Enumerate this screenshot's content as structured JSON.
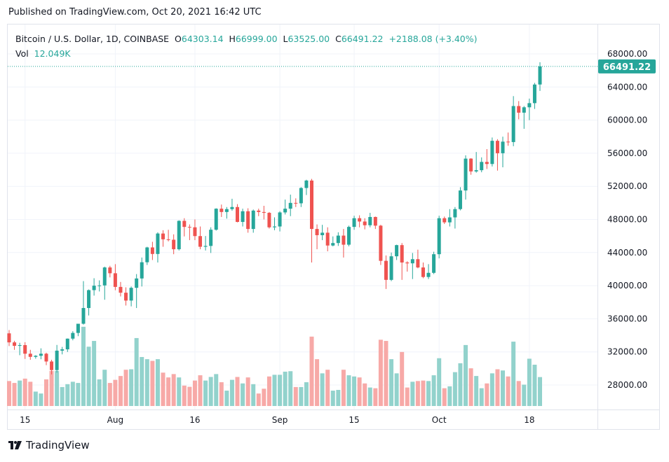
{
  "header": {
    "published": "Published on TradingView.com, Oct 20, 2021 16:42 UTC"
  },
  "legend": {
    "symbol": "Bitcoin / U.S. Dollar, 1D, COINBASE",
    "o_label": "O",
    "o": "64303.14",
    "h_label": "H",
    "h": "66999.00",
    "l_label": "L",
    "l": "63525.00",
    "c_label": "C",
    "c": "66491.22",
    "change": "+2188.08 (+3.40%)",
    "vol_label": "Vol",
    "vol": "12.049K"
  },
  "footer": {
    "brand": "TradingView"
  },
  "colors": {
    "up": "#26a69a",
    "down": "#ef5350",
    "up_volume": "#92d2cc",
    "down_volume": "#f7a9a7"
  },
  "chart_data": {
    "type": "candlestick",
    "title": "Bitcoin / U.S. Dollar, 1D, COINBASE",
    "price_axis_ticks": [
      "68000.00",
      "64000.00",
      "60000.00",
      "56000.00",
      "52000.00",
      "48000.00",
      "44000.00",
      "40000.00",
      "36000.00",
      "32000.00",
      "28000.00"
    ],
    "time_axis_ticks": [
      {
        "label": "15",
        "date": "2021-07-15"
      },
      {
        "label": "Aug",
        "date": "2021-08-01"
      },
      {
        "label": "16",
        "date": "2021-08-16"
      },
      {
        "label": "Sep",
        "date": "2021-09-01"
      },
      {
        "label": "15",
        "date": "2021-09-15"
      },
      {
        "label": "Oct",
        "date": "2021-10-01"
      },
      {
        "label": "18",
        "date": "2021-10-18"
      }
    ],
    "last_price_label": "66491.22",
    "ylim": [
      26000,
      70000
    ],
    "volume_unit": "K",
    "columns": [
      "date",
      "open",
      "high",
      "low",
      "close",
      "volume"
    ],
    "candles": [
      [
        "2021-07-12",
        34240,
        34640,
        32700,
        33150,
        10.4
      ],
      [
        "2021-07-13",
        33150,
        33340,
        32250,
        32730,
        9.6
      ],
      [
        "2021-07-14",
        32730,
        33100,
        31600,
        32820,
        10.6
      ],
      [
        "2021-07-15",
        32820,
        33170,
        31150,
        31780,
        11.4
      ],
      [
        "2021-07-16",
        31780,
        32250,
        31050,
        31400,
        10.1
      ],
      [
        "2021-07-17",
        31400,
        31600,
        31180,
        31530,
        6.0
      ],
      [
        "2021-07-18",
        31530,
        32430,
        31110,
        31780,
        5.2
      ],
      [
        "2021-07-19",
        31780,
        31900,
        30400,
        30840,
        11.1
      ],
      [
        "2021-07-20",
        30840,
        31050,
        29280,
        29800,
        14.6
      ],
      [
        "2021-07-21",
        29800,
        32840,
        29500,
        32150,
        14.6
      ],
      [
        "2021-07-22",
        32150,
        32600,
        31700,
        32310,
        7.9
      ],
      [
        "2021-07-23",
        32310,
        33620,
        31990,
        33600,
        9.1
      ],
      [
        "2021-07-24",
        33600,
        34500,
        33400,
        34290,
        10.1
      ],
      [
        "2021-07-25",
        34290,
        35400,
        33900,
        35400,
        9.6
      ],
      [
        "2021-07-26",
        35400,
        40550,
        35300,
        37300,
        33.0
      ],
      [
        "2021-07-27",
        37300,
        39540,
        36400,
        39460,
        24.7
      ],
      [
        "2021-07-28",
        39460,
        40900,
        38800,
        40000,
        27.1
      ],
      [
        "2021-07-29",
        40000,
        40640,
        39300,
        40030,
        11.1
      ],
      [
        "2021-07-30",
        40030,
        42300,
        38300,
        42200,
        15.1
      ],
      [
        "2021-07-31",
        42200,
        42400,
        41000,
        41500,
        9.6
      ],
      [
        "2021-08-01",
        41500,
        42600,
        39450,
        39850,
        10.9
      ],
      [
        "2021-08-02",
        39850,
        40450,
        38700,
        39150,
        12.5
      ],
      [
        "2021-08-03",
        39150,
        39800,
        37600,
        38200,
        15.1
      ],
      [
        "2021-08-04",
        38200,
        39900,
        37500,
        39740,
        15.3
      ],
      [
        "2021-08-05",
        39740,
        41400,
        37300,
        40870,
        28.3
      ],
      [
        "2021-08-06",
        40870,
        43400,
        39900,
        42830,
        20.4
      ],
      [
        "2021-08-07",
        42830,
        44700,
        42500,
        44620,
        19.5
      ],
      [
        "2021-08-08",
        44620,
        45300,
        43100,
        43830,
        18.8
      ],
      [
        "2021-08-09",
        43830,
        46450,
        42800,
        46300,
        19.5
      ],
      [
        "2021-08-10",
        46300,
        46700,
        44700,
        45600,
        13.9
      ],
      [
        "2021-08-11",
        45600,
        46750,
        45350,
        45550,
        11.9
      ],
      [
        "2021-08-12",
        45550,
        46200,
        43800,
        44400,
        13.3
      ],
      [
        "2021-08-13",
        44400,
        47900,
        44250,
        47830,
        11.9
      ],
      [
        "2021-08-14",
        47830,
        48150,
        45950,
        47100,
        8.5
      ],
      [
        "2021-08-15",
        47100,
        47400,
        45500,
        47050,
        8.0
      ],
      [
        "2021-08-16",
        47050,
        48000,
        45500,
        45990,
        10.6
      ],
      [
        "2021-08-17",
        45990,
        47150,
        44400,
        44700,
        12.8
      ],
      [
        "2021-08-18",
        44700,
        46000,
        44250,
        44800,
        10.6
      ],
      [
        "2021-08-19",
        44800,
        47050,
        43950,
        46760,
        12.1
      ],
      [
        "2021-08-20",
        46760,
        49350,
        46650,
        49300,
        13.3
      ],
      [
        "2021-08-21",
        49300,
        49800,
        48300,
        48900,
        9.9
      ],
      [
        "2021-08-22",
        48900,
        49500,
        48100,
        49250,
        6.4
      ],
      [
        "2021-08-23",
        49250,
        50500,
        49050,
        49500,
        10.9
      ],
      [
        "2021-08-24",
        49500,
        49850,
        47650,
        47700,
        12.1
      ],
      [
        "2021-08-25",
        47700,
        49300,
        47150,
        48990,
        9.4
      ],
      [
        "2021-08-26",
        48990,
        49350,
        46400,
        46850,
        11.9
      ],
      [
        "2021-08-27",
        46850,
        49200,
        46400,
        49070,
        9.1
      ],
      [
        "2021-08-28",
        49070,
        49300,
        48400,
        48900,
        5.2
      ],
      [
        "2021-08-29",
        48900,
        49650,
        48000,
        48800,
        7.2
      ],
      [
        "2021-08-30",
        48800,
        48900,
        46900,
        47050,
        12.3
      ],
      [
        "2021-08-31",
        47050,
        48250,
        46700,
        47150,
        13.0
      ],
      [
        "2021-09-01",
        47150,
        49000,
        46550,
        48850,
        13.0
      ],
      [
        "2021-09-02",
        48850,
        50400,
        48600,
        49300,
        14.3
      ],
      [
        "2021-09-03",
        49300,
        51000,
        48400,
        50000,
        14.5
      ],
      [
        "2021-09-04",
        50000,
        50550,
        49500,
        49950,
        7.9
      ],
      [
        "2021-09-05",
        49950,
        51900,
        49500,
        51800,
        7.9
      ],
      [
        "2021-09-06",
        51800,
        52800,
        50950,
        52700,
        9.9
      ],
      [
        "2021-09-07",
        52700,
        52900,
        42800,
        46850,
        28.9
      ],
      [
        "2021-09-08",
        46850,
        47400,
        44400,
        46100,
        19.5
      ],
      [
        "2021-09-09",
        46100,
        47350,
        45500,
        46400,
        13.6
      ],
      [
        "2021-09-10",
        46400,
        47050,
        44150,
        44850,
        15.1
      ],
      [
        "2021-09-11",
        44850,
        45950,
        44750,
        45150,
        6.4
      ],
      [
        "2021-09-12",
        45150,
        46450,
        44800,
        46050,
        6.7
      ],
      [
        "2021-09-13",
        46050,
        46850,
        43400,
        44950,
        15.1
      ],
      [
        "2021-09-14",
        44950,
        47250,
        44750,
        47100,
        12.8
      ],
      [
        "2021-09-15",
        47100,
        48450,
        46750,
        48150,
        12.3
      ],
      [
        "2021-09-16",
        48150,
        48500,
        47050,
        47750,
        11.9
      ],
      [
        "2021-09-17",
        47750,
        48150,
        46800,
        47300,
        9.4
      ],
      [
        "2021-09-18",
        47300,
        48800,
        47050,
        48300,
        7.7
      ],
      [
        "2021-09-19",
        48300,
        48350,
        46850,
        47250,
        7.4
      ],
      [
        "2021-09-20",
        47250,
        47350,
        42500,
        43000,
        27.6
      ],
      [
        "2021-09-21",
        43000,
        43650,
        39600,
        40700,
        27.1
      ],
      [
        "2021-09-22",
        40700,
        44000,
        40550,
        43550,
        19.5
      ],
      [
        "2021-09-23",
        43550,
        44950,
        43100,
        44900,
        13.6
      ],
      [
        "2021-09-24",
        44900,
        45150,
        40700,
        42800,
        22.5
      ],
      [
        "2021-09-25",
        42800,
        42950,
        41700,
        42700,
        7.7
      ],
      [
        "2021-09-26",
        42700,
        43950,
        40800,
        43200,
        10.1
      ],
      [
        "2021-09-27",
        43200,
        44350,
        42100,
        42200,
        10.4
      ],
      [
        "2021-09-28",
        42200,
        42800,
        40900,
        41050,
        10.6
      ],
      [
        "2021-09-29",
        41050,
        42600,
        40800,
        41550,
        10.4
      ],
      [
        "2021-09-30",
        41550,
        44100,
        41400,
        43800,
        12.8
      ],
      [
        "2021-10-01",
        43800,
        48450,
        43300,
        48150,
        19.9
      ],
      [
        "2021-10-02",
        48150,
        48350,
        47450,
        47650,
        7.4
      ],
      [
        "2021-10-03",
        47650,
        49250,
        47150,
        48250,
        8.2
      ],
      [
        "2021-10-04",
        48250,
        49500,
        46900,
        49250,
        14.1
      ],
      [
        "2021-10-05",
        49250,
        51900,
        49100,
        51500,
        17.8
      ],
      [
        "2021-10-06",
        51500,
        55750,
        50400,
        55350,
        25.4
      ],
      [
        "2021-10-07",
        55350,
        55400,
        53400,
        53800,
        15.7
      ],
      [
        "2021-10-08",
        53800,
        56150,
        53650,
        53950,
        12.5
      ],
      [
        "2021-10-09",
        53950,
        55500,
        53700,
        54950,
        7.4
      ],
      [
        "2021-10-10",
        54950,
        56500,
        54100,
        54700,
        9.4
      ],
      [
        "2021-10-11",
        54700,
        57900,
        54400,
        57500,
        13.6
      ],
      [
        "2021-10-12",
        57500,
        57700,
        53900,
        56000,
        15.3
      ],
      [
        "2021-10-13",
        56000,
        58000,
        54300,
        57400,
        14.8
      ],
      [
        "2021-10-14",
        57400,
        58500,
        56900,
        57350,
        12.3
      ],
      [
        "2021-10-15",
        57350,
        62900,
        56850,
        61700,
        26.8
      ],
      [
        "2021-10-16",
        61700,
        62300,
        60100,
        60900,
        10.4
      ],
      [
        "2021-10-17",
        60900,
        61700,
        58950,
        61550,
        8.9
      ],
      [
        "2021-10-18",
        61550,
        62600,
        60000,
        62050,
        19.7
      ],
      [
        "2021-10-19",
        62050,
        64500,
        61350,
        64300,
        17.2
      ],
      [
        "2021-10-20",
        64303.14,
        66999.0,
        63525.0,
        66491.22,
        12.049
      ]
    ]
  }
}
